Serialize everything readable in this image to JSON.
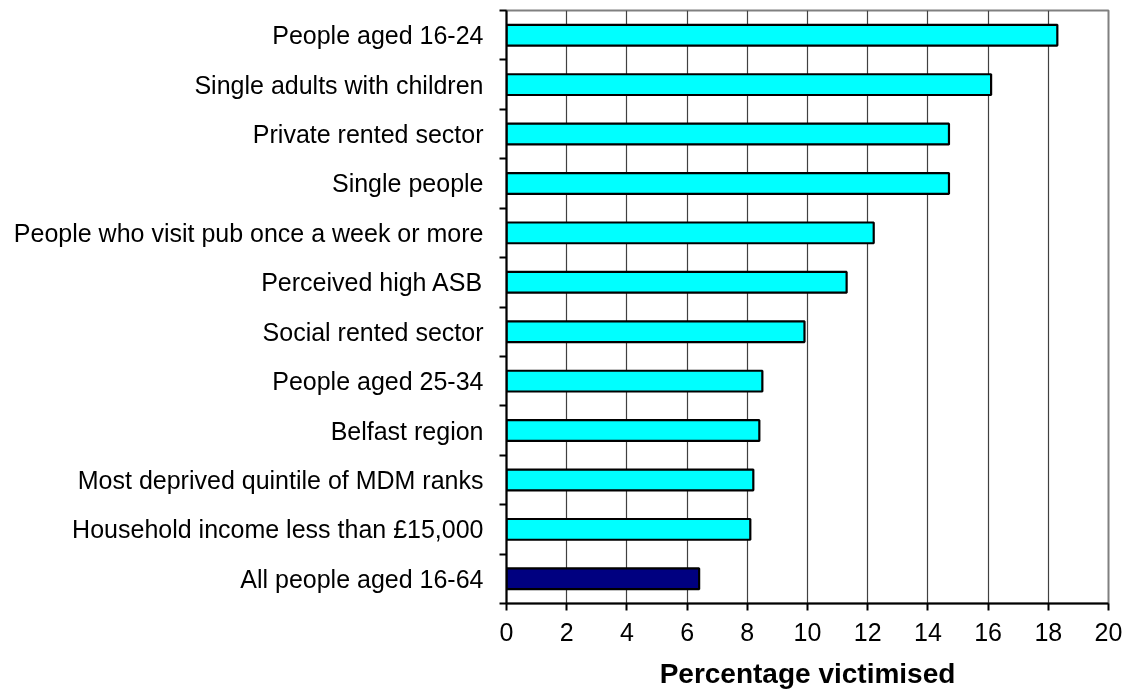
{
  "chart_data": {
    "type": "bar",
    "orientation": "horizontal",
    "xlabel": "Percentage victimised",
    "categories": [
      "People aged 16-24",
      "Single adults with children",
      "Private rented sector",
      "Single people",
      "People who visit pub once a week or more",
      "Perceived high ASB",
      "Social rented sector",
      "People aged 25-34",
      "Belfast region",
      "Most deprived quintile of MDM ranks",
      "Household income less than £15,000",
      "All people aged 16-64"
    ],
    "values": [
      18.3,
      16.1,
      14.7,
      14.7,
      12.2,
      11.3,
      9.9,
      8.5,
      8.4,
      8.2,
      8.1,
      6.4
    ],
    "colors": [
      "#00ffff",
      "#00ffff",
      "#00ffff",
      "#00ffff",
      "#00ffff",
      "#00ffff",
      "#00ffff",
      "#00ffff",
      "#00ffff",
      "#00ffff",
      "#00ffff",
      "#000080"
    ],
    "xlim": [
      0,
      20
    ],
    "xticks": [
      0,
      2,
      4,
      6,
      8,
      10,
      12,
      14,
      16,
      18,
      20
    ],
    "grid": "x"
  }
}
